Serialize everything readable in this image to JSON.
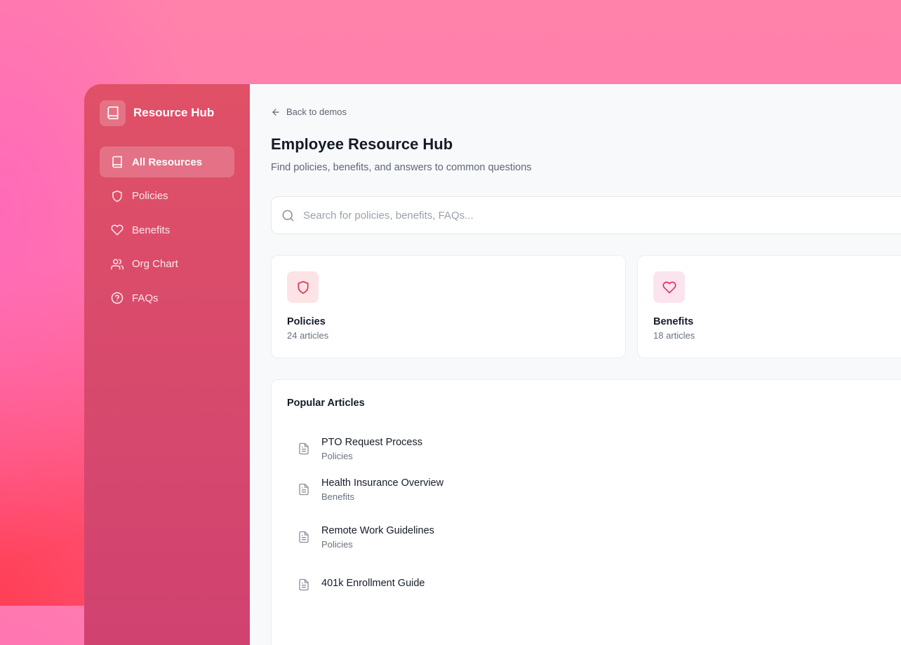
{
  "sidebar": {
    "brand": "Resource Hub",
    "items": [
      {
        "label": "All Resources",
        "icon": "book-icon",
        "active": true
      },
      {
        "label": "Policies",
        "icon": "shield-icon"
      },
      {
        "label": "Benefits",
        "icon": "heart-icon"
      },
      {
        "label": "Org Chart",
        "icon": "users-icon"
      },
      {
        "label": "FAQs",
        "icon": "help-circle-icon"
      }
    ]
  },
  "main": {
    "back": "Back to demos",
    "title": "Employee Resource Hub",
    "subtitle": "Find policies, benefits, and answers to common questions",
    "search_placeholder": "Search for policies, benefits, FAQs...",
    "cards": [
      {
        "title": "Policies",
        "count": "24 articles",
        "icon": "shield-icon",
        "color": "#e0304e",
        "bg": "#fde3e6"
      },
      {
        "title": "Benefits",
        "count": "18 articles",
        "icon": "heart-icon",
        "color": "#e0306e",
        "bg": "#fce4ee"
      }
    ],
    "popular": {
      "title": "Popular Articles",
      "items": [
        {
          "title": "PTO Request Process",
          "category": "Policies"
        },
        {
          "title": "Health Insurance Overview",
          "category": "Benefits"
        },
        {
          "title": "Remote Work Guidelines",
          "category": "Policies"
        },
        {
          "title": "401k Enrollment Guide",
          "category": ""
        }
      ]
    }
  }
}
